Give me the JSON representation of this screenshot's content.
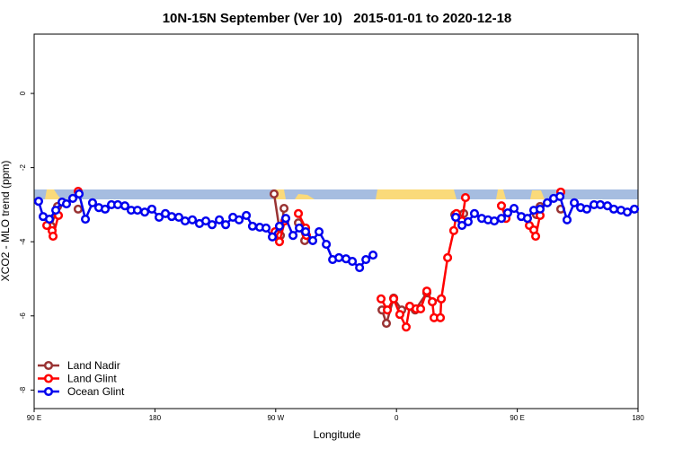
{
  "chart_data": {
    "type": "line",
    "title": "10N-15N September (Ver 10)   2015-01-01 to 2020-12-18",
    "x_label": "Longitude",
    "y_label": "XCO2 - MLO trend (ppm)",
    "xlim": [
      90,
      540
    ],
    "ylim": [
      -8.5,
      1.6
    ],
    "xticks": [
      {
        "value": 90,
        "label": "90 E"
      },
      {
        "value": 180,
        "label": "180"
      },
      {
        "value": 270,
        "label": "90 W"
      },
      {
        "value": 360,
        "label": "0"
      },
      {
        "value": 450,
        "label": "90 E"
      },
      {
        "value": 540,
        "label": "180"
      }
    ],
    "yticks": [
      -8,
      -6,
      -4,
      -2,
      0
    ],
    "legend": "bottom-left",
    "series": [
      {
        "name": "Land Nadir",
        "color": "#993333",
        "x": [
          102.7,
          107.4,
          null,
          122.8,
          null,
          268.8,
          273.5,
          276.2,
          null,
          286.9,
          291.6,
          null,
          349.2,
          352.5,
          357.9,
          363.9,
          369.9,
          373.9,
          382.6,
          386.7,
          393.4,
          null,
          403.4,
          410.1,
          null,
          464.3,
          467.0,
          null,
          482.4
        ],
        "values": [
          -3.58,
          -3.05,
          null,
          -3.12,
          null,
          -2.71,
          -3.83,
          -3.1,
          null,
          -3.49,
          -3.97,
          null,
          -5.84,
          -6.2,
          -5.52,
          -5.84,
          -5.74,
          -5.84,
          -5.38,
          -5.62,
          -5.54,
          null,
          -3.27,
          -3.24,
          null,
          -3.27,
          -3.05,
          null,
          -3.12
        ]
      },
      {
        "name": "Land Glint",
        "color": "#ff0000",
        "x": [
          99.4,
          103.4,
          104.1,
          108.1,
          null,
          122.8,
          null,
          269.5,
          272.8,
          276.8,
          null,
          286.9,
          292.3,
          292.9,
          null,
          348.5,
          353.2,
          357.9,
          362.5,
          367.2,
          369.9,
          374.6,
          378.0,
          382.6,
          386.7,
          388.0,
          392.7,
          393.4,
          398.1,
          402.7,
          404.7,
          408.8,
          411.4,
          null,
          438.2,
          441.6,
          null,
          459.0,
          462.3,
          463.7,
          467.0,
          null,
          482.4
        ],
        "values": [
          -3.56,
          -3.7,
          -3.85,
          -3.29,
          null,
          -2.64,
          null,
          -3.73,
          -4.0,
          -3.44,
          null,
          -3.24,
          -3.63,
          -3.83,
          null,
          -5.54,
          -5.84,
          -5.54,
          -5.96,
          -6.3,
          -5.74,
          -5.81,
          -5.81,
          -5.33,
          -5.62,
          -6.05,
          -6.05,
          -5.54,
          -4.43,
          -3.7,
          -3.24,
          -3.44,
          -2.81,
          null,
          -3.03,
          -3.37,
          null,
          -3.56,
          -3.68,
          -3.85,
          -3.29,
          null,
          -2.66
        ]
      },
      {
        "name": "Ocean Glint",
        "color": "#0000ee",
        "x": [
          93.3,
          96.7,
          101.4,
          106.1,
          110.8,
          114.1,
          118.8,
          123.5,
          128.2,
          133.5,
          138.2,
          142.9,
          147.6,
          152.3,
          157.6,
          162.3,
          167.0,
          172.4,
          177.7,
          183.1,
          187.8,
          192.5,
          197.8,
          202.5,
          207.9,
          213.2,
          217.9,
          222.6,
          228.0,
          232.7,
          238.1,
          242.7,
          248.1,
          252.7,
          258.1,
          262.8,
          267.5,
          272.8,
          277.5,
          282.9,
          287.6,
          292.3,
          297.6,
          302.3,
          307.7,
          312.4,
          317.1,
          322.4,
          327.1,
          332.5,
          337.2,
          342.5,
          null,
          404.1,
          408.8,
          413.4,
          418.1,
          423.5,
          428.2,
          432.9,
          438.2,
          442.9,
          447.6,
          453.0,
          457.6,
          462.3,
          467.0,
          472.4,
          477.1,
          481.8,
          487.1,
          492.5,
          497.2,
          501.8,
          507.2,
          511.9,
          517.2,
          521.9,
          527.3,
          532.0,
          537.3
        ],
        "values": [
          -2.91,
          -3.32,
          -3.39,
          -3.15,
          -2.93,
          -2.98,
          -2.83,
          -2.71,
          -3.39,
          -2.95,
          -3.08,
          -3.12,
          -3.0,
          -3.0,
          -3.03,
          -3.15,
          -3.15,
          -3.2,
          -3.12,
          -3.34,
          -3.24,
          -3.32,
          -3.34,
          -3.44,
          -3.41,
          -3.51,
          -3.44,
          -3.54,
          -3.41,
          -3.54,
          -3.34,
          -3.41,
          -3.29,
          -3.58,
          -3.61,
          -3.63,
          -3.87,
          -3.58,
          -3.37,
          -3.83,
          -3.63,
          -3.73,
          -3.97,
          -3.73,
          -4.07,
          -4.48,
          -4.43,
          -4.46,
          -4.53,
          -4.7,
          -4.48,
          -4.36,
          null,
          -3.34,
          -3.56,
          -3.46,
          -3.24,
          -3.37,
          -3.41,
          -3.44,
          -3.37,
          -3.22,
          -3.1,
          -3.32,
          -3.37,
          -3.15,
          -3.12,
          -2.95,
          -2.83,
          -2.78,
          -3.41,
          -2.95,
          -3.08,
          -3.12,
          -3.0,
          -3.0,
          -3.03,
          -3.12,
          -3.15,
          -3.2,
          -3.12
        ]
      }
    ]
  }
}
